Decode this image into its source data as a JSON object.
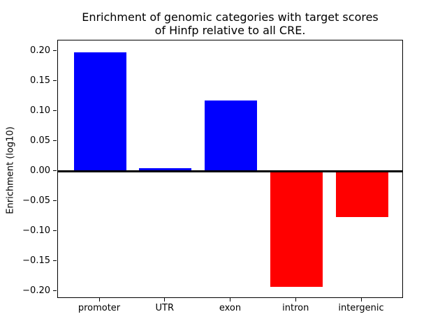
{
  "chart_data": {
    "type": "bar",
    "title": "Enrichment of genomic categories with target scores\nof Hinfp relative to all CRE.",
    "xlabel": "",
    "ylabel": "Enrichment (log10)",
    "categories": [
      "promoter",
      "UTR",
      "exon",
      "intron",
      "intergenic"
    ],
    "values": [
      0.198,
      0.005,
      0.118,
      -0.193,
      -0.076
    ],
    "ylim": [
      -0.2126,
      0.2176
    ],
    "xlim": [
      -0.64,
      4.64
    ],
    "bar_width_units": 0.8,
    "yticks": [
      0.2,
      0.15,
      0.1,
      0.05,
      0.0,
      -0.05,
      -0.1,
      -0.15,
      -0.2
    ],
    "ytick_labels": [
      "0.20",
      "0.15",
      "0.10",
      "0.05",
      "0.00",
      "−0.05",
      "−0.10",
      "−0.15",
      "−0.20"
    ],
    "grid": false,
    "legend": null,
    "colors": {
      "positive": "#0000ff",
      "negative": "#ff0000",
      "zero_line": "#000000",
      "axes": "#000000",
      "background": "#ffffff"
    }
  }
}
